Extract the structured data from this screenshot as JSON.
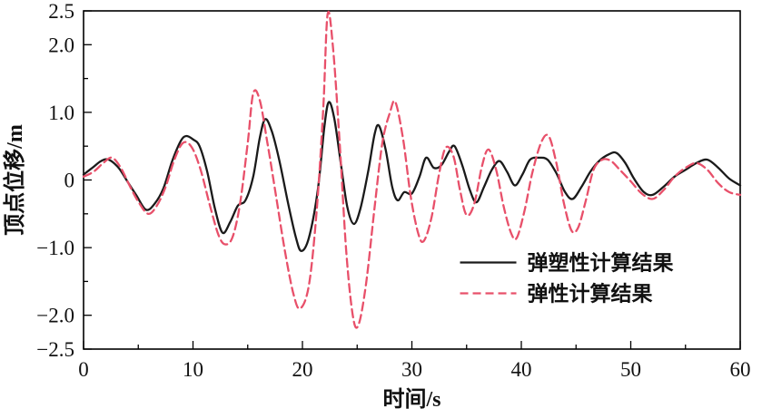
{
  "figure": {
    "background": "#ffffff"
  },
  "chart_data": {
    "type": "line",
    "title": "",
    "xlabel": "时间/s",
    "ylabel": "顶点位移/m",
    "xlim": [
      0,
      60
    ],
    "ylim": [
      -2.5,
      2.5
    ],
    "grid": false,
    "frame": true,
    "x_axis": {
      "major_ticks": [
        0,
        10,
        20,
        30,
        40,
        50,
        60
      ],
      "major_labels": [
        "0",
        "10",
        "20",
        "30",
        "40",
        "50",
        "60"
      ],
      "minor_step": 5
    },
    "y_axis": {
      "major_ticks": [
        2.5,
        2.0,
        1.0,
        0,
        -1.0,
        -2.0,
        -2.5
      ],
      "major_labels": [
        "2.5",
        "2.0",
        "1.0",
        "0",
        "−1.0",
        "−2.0",
        "−2.5"
      ],
      "minor_step": 0.5
    },
    "legend": {
      "position": "inside-lower-right"
    },
    "series": [
      {
        "name": "弹塑性计算结果",
        "color": "#1a1a1a",
        "style": "solid",
        "dash": "",
        "width": 2.3,
        "points": [
          [
            0,
            0.08
          ],
          [
            0.8,
            0.18
          ],
          [
            1.6,
            0.28
          ],
          [
            2.3,
            0.3
          ],
          [
            3.2,
            0.18
          ],
          [
            4.0,
            -0.02
          ],
          [
            4.8,
            -0.22
          ],
          [
            5.7,
            -0.44
          ],
          [
            6.5,
            -0.35
          ],
          [
            7.3,
            -0.12
          ],
          [
            8.1,
            0.28
          ],
          [
            8.9,
            0.58
          ],
          [
            9.4,
            0.65
          ],
          [
            10.0,
            0.6
          ],
          [
            10.6,
            0.5
          ],
          [
            11.3,
            0.12
          ],
          [
            12.0,
            -0.42
          ],
          [
            12.7,
            -0.78
          ],
          [
            13.4,
            -0.62
          ],
          [
            14.1,
            -0.38
          ],
          [
            14.8,
            -0.3
          ],
          [
            15.5,
            0.05
          ],
          [
            16.1,
            0.62
          ],
          [
            16.6,
            0.9
          ],
          [
            17.2,
            0.72
          ],
          [
            17.9,
            0.28
          ],
          [
            18.7,
            -0.35
          ],
          [
            19.4,
            -0.85
          ],
          [
            19.9,
            -1.05
          ],
          [
            20.6,
            -0.85
          ],
          [
            21.4,
            -0.15
          ],
          [
            22.0,
            0.78
          ],
          [
            22.4,
            1.15
          ],
          [
            22.9,
            0.92
          ],
          [
            23.5,
            0.25
          ],
          [
            24.1,
            -0.4
          ],
          [
            24.7,
            -0.65
          ],
          [
            25.3,
            -0.42
          ],
          [
            26.0,
            0.12
          ],
          [
            26.6,
            0.68
          ],
          [
            27.0,
            0.8
          ],
          [
            27.6,
            0.45
          ],
          [
            28.2,
            -0.1
          ],
          [
            28.7,
            -0.3
          ],
          [
            29.3,
            -0.18
          ],
          [
            30.0,
            -0.2
          ],
          [
            30.7,
            0.05
          ],
          [
            31.3,
            0.33
          ],
          [
            32.0,
            0.18
          ],
          [
            32.7,
            0.22
          ],
          [
            33.4,
            0.42
          ],
          [
            33.9,
            0.5
          ],
          [
            34.6,
            0.22
          ],
          [
            35.3,
            -0.15
          ],
          [
            35.9,
            -0.33
          ],
          [
            36.6,
            -0.1
          ],
          [
            37.3,
            0.15
          ],
          [
            38.0,
            0.28
          ],
          [
            38.7,
            0.12
          ],
          [
            39.4,
            -0.08
          ],
          [
            40.1,
            0.08
          ],
          [
            40.8,
            0.3
          ],
          [
            41.6,
            0.33
          ],
          [
            42.4,
            0.3
          ],
          [
            43.2,
            0.1
          ],
          [
            44.0,
            -0.18
          ],
          [
            44.7,
            -0.28
          ],
          [
            45.5,
            -0.1
          ],
          [
            46.3,
            0.12
          ],
          [
            47.1,
            0.28
          ],
          [
            48.0,
            0.38
          ],
          [
            48.7,
            0.4
          ],
          [
            49.5,
            0.25
          ],
          [
            50.3,
            0.02
          ],
          [
            51.2,
            -0.18
          ],
          [
            52.0,
            -0.22
          ],
          [
            53.0,
            -0.1
          ],
          [
            54.0,
            0.05
          ],
          [
            55.0,
            0.15
          ],
          [
            56.0,
            0.25
          ],
          [
            57.0,
            0.3
          ],
          [
            58.0,
            0.18
          ],
          [
            59.0,
            0.02
          ],
          [
            60,
            -0.08
          ]
        ]
      },
      {
        "name": "弹性计算结果",
        "color": "#e8506a",
        "style": "dashed",
        "dash": "9,5",
        "width": 2.3,
        "points": [
          [
            0,
            0.05
          ],
          [
            0.9,
            0.12
          ],
          [
            1.8,
            0.25
          ],
          [
            2.6,
            0.33
          ],
          [
            3.4,
            0.18
          ],
          [
            4.2,
            -0.08
          ],
          [
            5.0,
            -0.32
          ],
          [
            5.9,
            -0.5
          ],
          [
            6.7,
            -0.38
          ],
          [
            7.5,
            -0.1
          ],
          [
            8.3,
            0.3
          ],
          [
            9.1,
            0.55
          ],
          [
            9.9,
            0.48
          ],
          [
            10.7,
            0.15
          ],
          [
            11.5,
            -0.35
          ],
          [
            12.3,
            -0.8
          ],
          [
            12.9,
            -0.95
          ],
          [
            13.6,
            -0.85
          ],
          [
            14.3,
            -0.35
          ],
          [
            15.0,
            0.55
          ],
          [
            15.5,
            1.28
          ],
          [
            16.1,
            1.18
          ],
          [
            16.8,
            0.55
          ],
          [
            17.6,
            -0.25
          ],
          [
            18.4,
            -1.05
          ],
          [
            19.2,
            -1.7
          ],
          [
            19.8,
            -1.9
          ],
          [
            20.6,
            -1.55
          ],
          [
            21.3,
            -0.45
          ],
          [
            21.9,
            1.05
          ],
          [
            22.3,
            2.45
          ],
          [
            22.8,
            1.95
          ],
          [
            23.4,
            0.55
          ],
          [
            24.0,
            -1.05
          ],
          [
            24.6,
            -2.0
          ],
          [
            25.1,
            -2.15
          ],
          [
            25.8,
            -1.55
          ],
          [
            26.6,
            -0.4
          ],
          [
            27.3,
            0.55
          ],
          [
            28.0,
            1.0
          ],
          [
            28.5,
            1.15
          ],
          [
            29.2,
            0.6
          ],
          [
            29.9,
            -0.25
          ],
          [
            30.6,
            -0.8
          ],
          [
            31.1,
            -0.9
          ],
          [
            31.8,
            -0.55
          ],
          [
            32.5,
            0.1
          ],
          [
            33.1,
            0.48
          ],
          [
            33.8,
            0.35
          ],
          [
            34.4,
            -0.15
          ],
          [
            35.0,
            -0.52
          ],
          [
            35.7,
            -0.35
          ],
          [
            36.4,
            0.2
          ],
          [
            37.0,
            0.45
          ],
          [
            37.7,
            0.15
          ],
          [
            38.4,
            -0.4
          ],
          [
            39.1,
            -0.8
          ],
          [
            39.6,
            -0.85
          ],
          [
            40.3,
            -0.45
          ],
          [
            41.0,
            0.1
          ],
          [
            41.8,
            0.55
          ],
          [
            42.5,
            0.65
          ],
          [
            43.2,
            0.25
          ],
          [
            43.9,
            -0.35
          ],
          [
            44.6,
            -0.75
          ],
          [
            45.2,
            -0.7
          ],
          [
            45.9,
            -0.3
          ],
          [
            46.6,
            0.15
          ],
          [
            47.4,
            0.3
          ],
          [
            48.2,
            0.28
          ],
          [
            49.0,
            0.15
          ],
          [
            50.0,
            -0.02
          ],
          [
            51.0,
            -0.2
          ],
          [
            52.0,
            -0.28
          ],
          [
            53.0,
            -0.15
          ],
          [
            54.0,
            0.05
          ],
          [
            55.0,
            0.18
          ],
          [
            56.0,
            0.25
          ],
          [
            57.0,
            0.15
          ],
          [
            58.0,
            -0.05
          ],
          [
            59.0,
            -0.18
          ],
          [
            60,
            -0.22
          ]
        ]
      }
    ]
  }
}
